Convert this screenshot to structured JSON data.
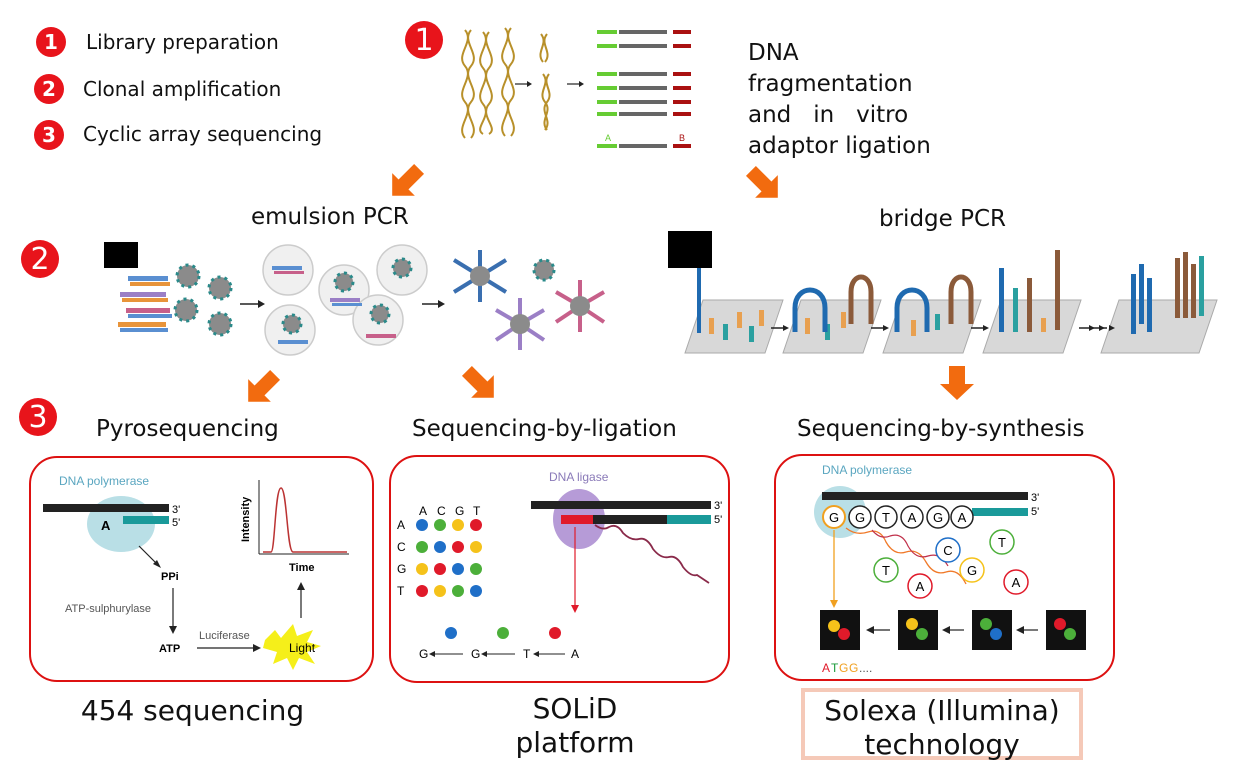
{
  "legend": [
    {
      "num": "1",
      "label": "Library preparation"
    },
    {
      "num": "2",
      "label": "Clonal amplification"
    },
    {
      "num": "3",
      "label": "Cyclic array sequencing"
    }
  ],
  "step_badges": [
    "1",
    "2",
    "3"
  ],
  "library_prep": {
    "caption_lines": [
      "DNA",
      "fragmentation",
      "and   in   vitro",
      "adaptor ligation"
    ],
    "adaptor_a": "A",
    "adaptor_b": "B"
  },
  "amplification": {
    "emulsion_title": "emulsion PCR",
    "bridge_title": "bridge PCR"
  },
  "sequencing": {
    "pyro": {
      "title": "Pyrosequencing",
      "enzyme": "DNA polymerase",
      "base": "A",
      "end3": "3'",
      "end5": "5'",
      "ppi": "PPi",
      "sulph": "ATP-sulphurylase",
      "atp": "ATP",
      "luciferase": "Luciferase",
      "light": "Light",
      "ylabel": "Intensity",
      "xlabel": "Time",
      "platform_lines": [
        "454 sequencing"
      ]
    },
    "ligation": {
      "title": "Sequencing-by-ligation",
      "enzyme": "DNA ligase",
      "end3": "3'",
      "end5": "5'",
      "col_bases": [
        "A",
        "C",
        "G",
        "T"
      ],
      "row_bases": [
        "A",
        "C",
        "G",
        "T"
      ],
      "seq": [
        "G",
        "G",
        "T",
        "A"
      ],
      "platform_lines": [
        "SOLiD",
        "platform"
      ]
    },
    "synthesis": {
      "title": "Sequencing-by-synthesis",
      "enzyme": "DNA polymerase",
      "end3": "3'",
      "end5": "5'",
      "strand": [
        "G",
        "G",
        "T",
        "A",
        "G",
        "A"
      ],
      "free": [
        "C",
        "T",
        "T",
        "G",
        "A",
        "A"
      ],
      "read": [
        "A",
        "T",
        "G",
        "G",
        "...."
      ],
      "platform_lines": [
        "Solexa (Illumina)",
        "technology"
      ]
    }
  },
  "colors": {
    "accent_red": "#e8141b",
    "arrow_orange": "#f26b0f",
    "panel_border": "#d11111",
    "solexa_box": "#f5c9b8"
  }
}
